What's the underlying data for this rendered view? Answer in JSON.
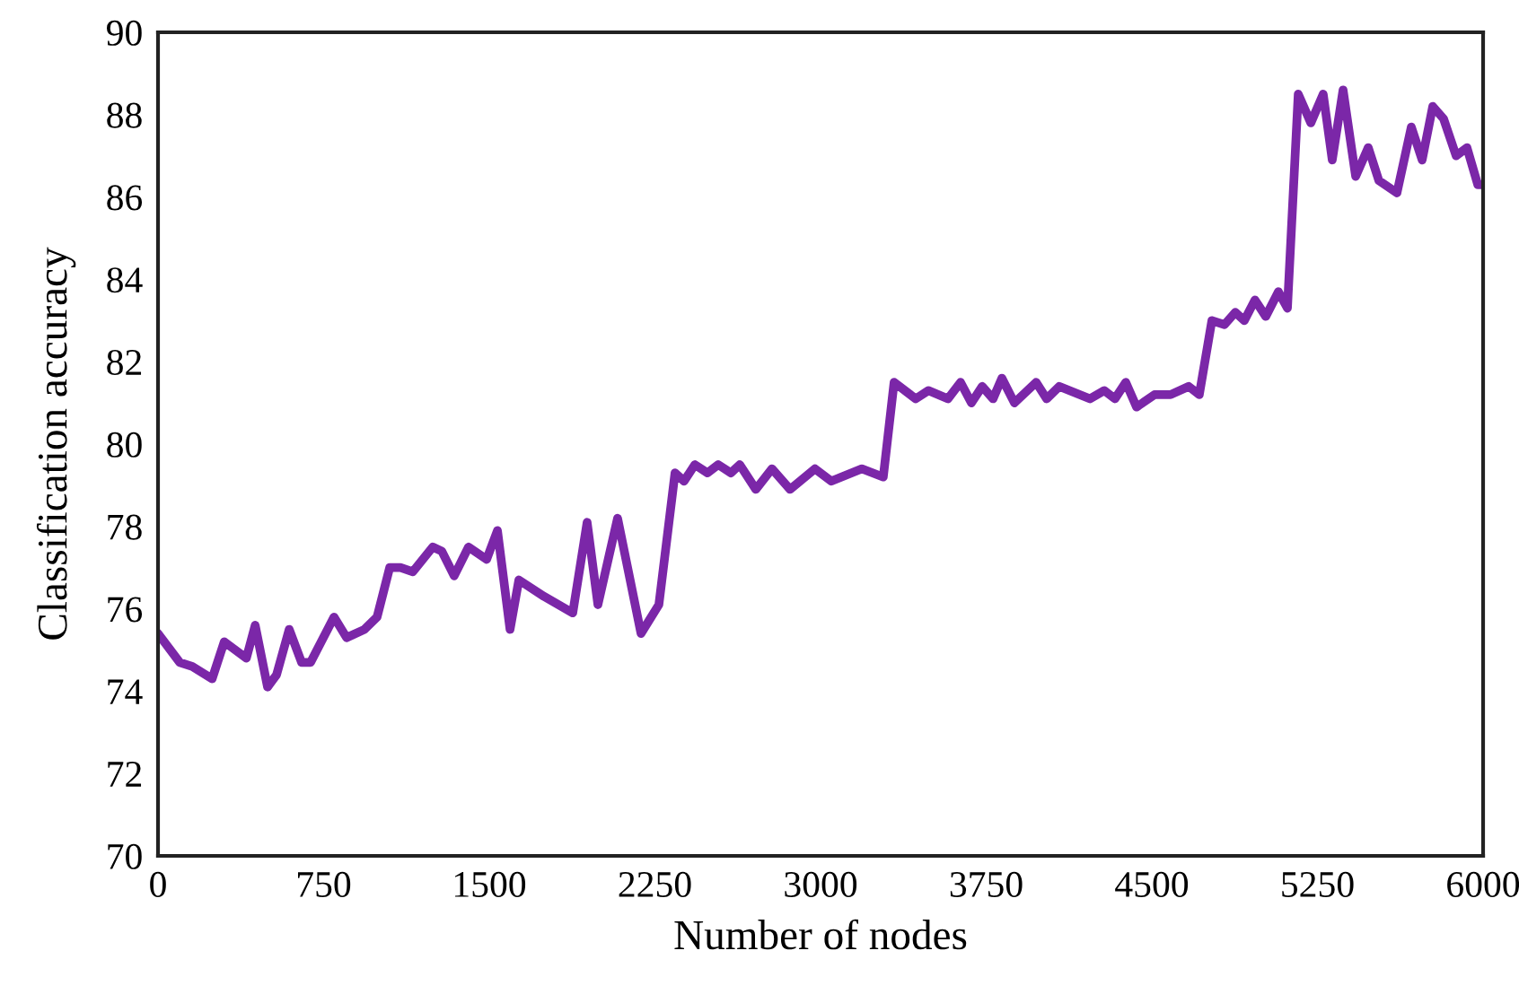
{
  "chart_data": {
    "type": "line",
    "xlabel": "Number of nodes",
    "ylabel": "Classification accuracy",
    "xlim": [
      0,
      6000
    ],
    "xticks": [
      0,
      750,
      1500,
      2250,
      3000,
      3750,
      4500,
      5250,
      6000
    ],
    "ylim": [
      70,
      90
    ],
    "yticks": [
      70,
      72,
      74,
      76,
      78,
      80,
      82,
      84,
      86,
      88,
      90
    ],
    "grid": false,
    "marker": "none",
    "line_style": "solid",
    "series": [
      {
        "color": "#7b27a8",
        "x": [
          0,
          98,
          155,
          245,
          300,
          400,
          440,
          496,
          537,
          594,
          650,
          691,
          797,
          854,
          935,
          992,
          1049,
          1098,
          1154,
          1244,
          1285,
          1341,
          1406,
          1488,
          1537,
          1594,
          1634,
          1748,
          1878,
          1943,
          1992,
          2081,
          2187,
          2268,
          2341,
          2382,
          2431,
          2488,
          2537,
          2594,
          2634,
          2707,
          2780,
          2862,
          2975,
          3049,
          3187,
          3284,
          3333,
          3431,
          3488,
          3577,
          3634,
          3683,
          3732,
          3781,
          3821,
          3878,
          3976,
          4024,
          4081,
          4220,
          4285,
          4333,
          4382,
          4431,
          4512,
          4585,
          4667,
          4715,
          4772,
          4829,
          4878,
          4919,
          4967,
          5016,
          5073,
          5114,
          5163,
          5220,
          5276,
          5317,
          5366,
          5423,
          5480,
          5528,
          5610,
          5675,
          5724,
          5772,
          5821,
          5878,
          5927,
          5976,
          6000
        ],
        "values": [
          75.4,
          74.7,
          74.6,
          74.3,
          75.2,
          74.8,
          75.6,
          74.1,
          74.4,
          75.5,
          74.7,
          74.7,
          75.8,
          75.3,
          75.5,
          75.8,
          77.0,
          77.0,
          76.9,
          77.5,
          77.4,
          76.8,
          77.5,
          77.2,
          77.9,
          75.5,
          76.7,
          76.3,
          75.9,
          78.1,
          76.1,
          78.2,
          75.4,
          76.1,
          79.3,
          79.1,
          79.5,
          79.3,
          79.5,
          79.3,
          79.5,
          78.9,
          79.4,
          78.9,
          79.4,
          79.1,
          79.4,
          79.2,
          81.5,
          81.1,
          81.3,
          81.1,
          81.5,
          81.0,
          81.4,
          81.1,
          81.6,
          81.0,
          81.5,
          81.1,
          81.4,
          81.1,
          81.3,
          81.1,
          81.5,
          80.9,
          81.2,
          81.2,
          81.4,
          81.2,
          83.0,
          82.9,
          83.2,
          83.0,
          83.5,
          83.1,
          83.7,
          83.3,
          88.5,
          87.8,
          88.5,
          86.9,
          88.6,
          86.5,
          87.2,
          86.4,
          86.1,
          87.7,
          86.9,
          88.2,
          87.9,
          87.0,
          87.2,
          86.3,
          86.3
        ]
      }
    ]
  }
}
